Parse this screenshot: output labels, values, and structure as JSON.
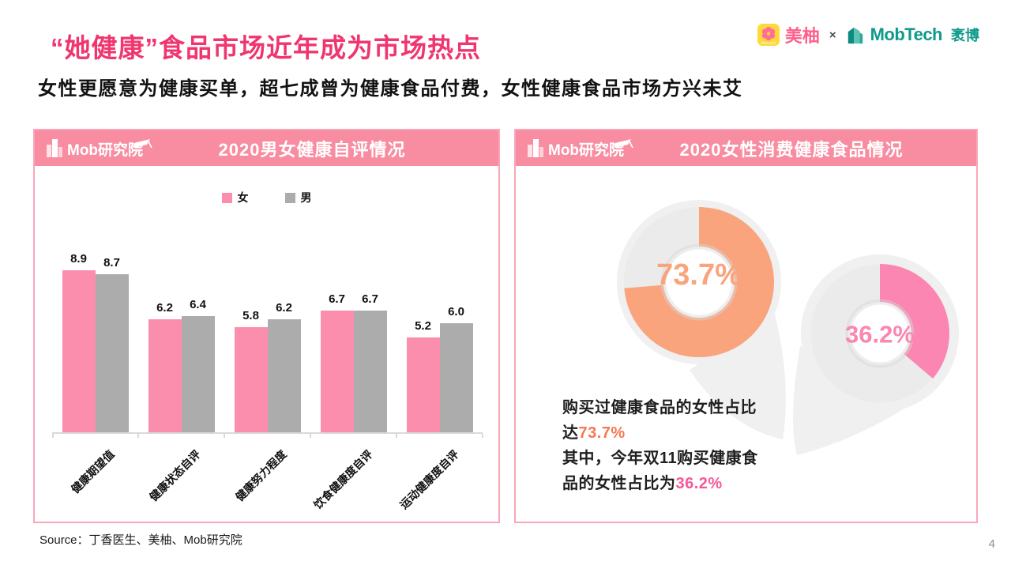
{
  "header": {
    "title": "“她健康”食品市场近年成为市场热点",
    "subtitle": "女性更愿意为健康买单，超七成曾为健康食品付费，女性健康食品市场方兴未艾",
    "logos": {
      "meiyou_label": "美柚",
      "meiyou_badge": "Meet you",
      "separator": "×",
      "mobtech_label": "MobTech",
      "mobtech_suffix": "袤博"
    }
  },
  "brand": {
    "research_logo": "Mob研究院"
  },
  "left_panel": {
    "title": "2020男女健康自评情况"
  },
  "right_panel": {
    "title": "2020女性消费健康食品情况",
    "caption_segments": [
      {
        "text": "购买过健康食品的女性占比达",
        "color": "#1f1f1f",
        "br_after": false
      },
      {
        "text": "73.7%",
        "color": "#F5784F",
        "br_after": true
      },
      {
        "text": "其中，今年双11购买健康食品的女性占比为",
        "color": "#1f1f1f",
        "br_after": false
      },
      {
        "text": "36.2%",
        "color": "#F7589A",
        "br_after": false
      }
    ]
  },
  "footer": {
    "source": "Source：丁香医生、美柚、Mob研究院",
    "page_number": "4"
  },
  "colors": {
    "accent_pink": "#F0366F",
    "panel_header_pink": "#F88CA0",
    "panel_border_pink": "#F9A6B9",
    "female_bar": "#FC8EAD",
    "male_bar": "#ACACAC",
    "donut_orange": "#F9A47D",
    "donut_pink": "#FA86B1",
    "axis_gray": "#D9D9D9"
  },
  "chart_data": [
    {
      "type": "bar",
      "title": "2020男女健康自评情况",
      "categories": [
        "健康期望值",
        "健康状态自评",
        "健康努力程度",
        "饮食健康度自评",
        "运动健康度自评"
      ],
      "series": [
        {
          "name": "女",
          "color": "#FC8EAD",
          "values": [
            8.9,
            6.2,
            5.8,
            6.7,
            5.2
          ]
        },
        {
          "name": "男",
          "color": "#ACACAC",
          "values": [
            8.7,
            6.4,
            6.2,
            6.7,
            6.0
          ]
        }
      ],
      "ylim": [
        0,
        10
      ],
      "grid": false,
      "legend_position": "top",
      "value_labels": true
    },
    {
      "type": "pie",
      "variant": "donut",
      "label": "73.7%",
      "value": 73.7,
      "color": "#F9A47D"
    },
    {
      "type": "pie",
      "variant": "donut",
      "label": "36.2%",
      "value": 36.2,
      "color": "#FA86B1"
    }
  ]
}
